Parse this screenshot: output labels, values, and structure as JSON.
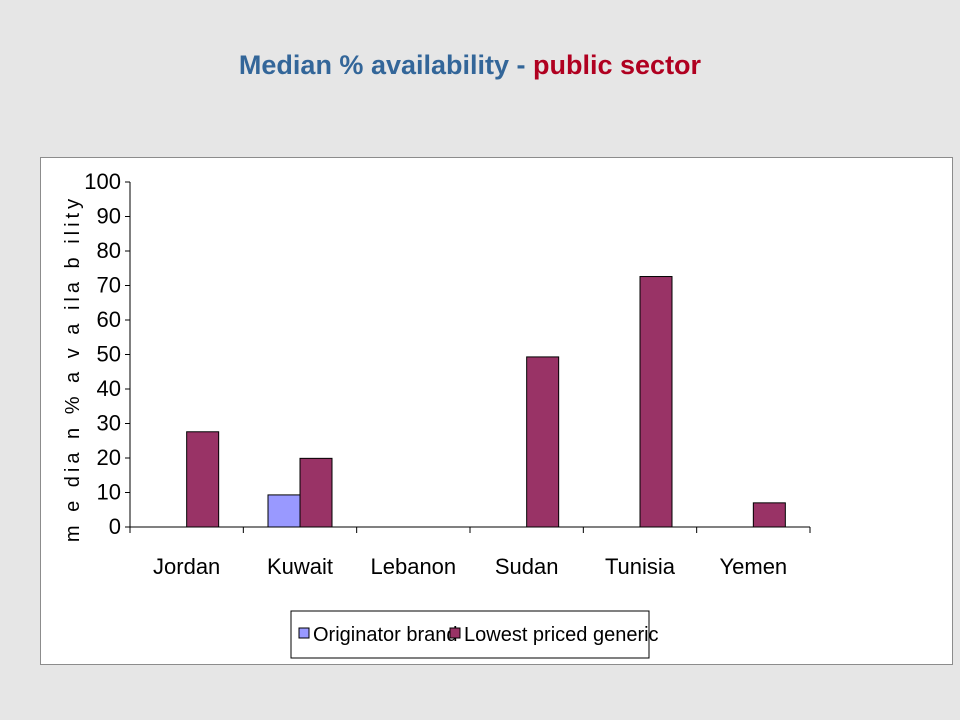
{
  "title": {
    "part1": "Median % availability - ",
    "part2": "public sector",
    "color1": "#336699",
    "color2": "#b00020"
  },
  "chart_data": {
    "type": "bar",
    "categories": [
      "Jordan",
      "Kuwait",
      "Lebanon",
      "Sudan",
      "Tunisia",
      "Yemen"
    ],
    "series": [
      {
        "name": "Originator brand",
        "color": "#9999ff",
        "values": [
          0,
          9.3,
          0,
          0,
          0,
          0
        ]
      },
      {
        "name": "Lowest priced generic",
        "color": "#993366",
        "values": [
          27.6,
          19.9,
          0,
          49.3,
          72.6,
          7
        ]
      }
    ],
    "ylabel": "m e dia n %  a v a ila b ility",
    "xlabel": "",
    "ylim": [
      0,
      100
    ],
    "yticks": [
      0,
      10,
      20,
      30,
      40,
      50,
      60,
      70,
      80,
      90,
      100
    ],
    "grid": false,
    "legend": "bottom"
  }
}
